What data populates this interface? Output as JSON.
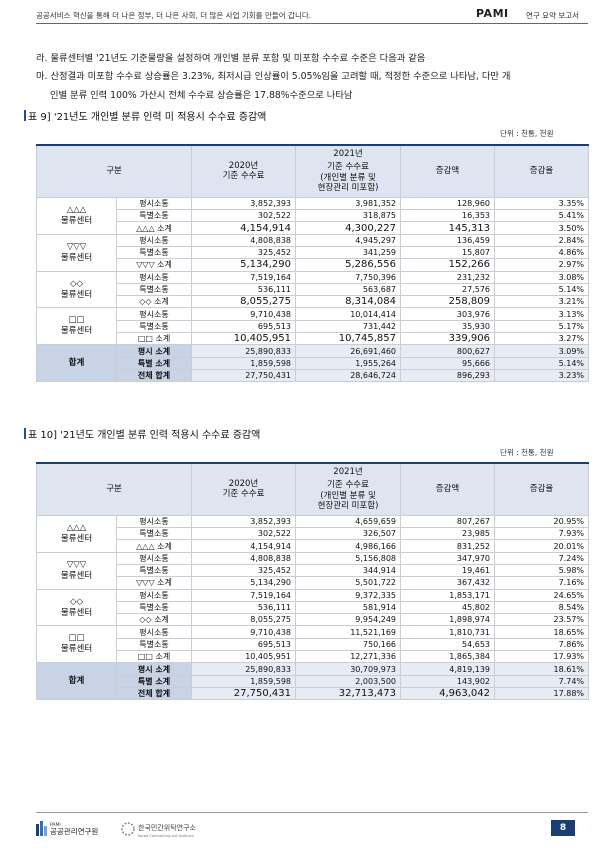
{
  "header": {
    "slogan": "공공서비스 혁신을 통해 더 나은 정부, 더 나은 사회, 더 많은 사업 기회를 만들어 갑니다.",
    "brand": "PAMI",
    "report": "연구 요약 보고서"
  },
  "paragraphs": [
    "라. 물류센터별 '21년도 기준물량을 설정하여 개인별 분류 포함 및 미포함 수수료 수준은 다음과 같음",
    "마. 산정결과 미포함 수수료 상승률은 3.23%, 최저시급 인상률이 5.05%임을 고려할 때, 적정한 수준으로 나타남, 다만 개",
    "인별 분류 인력 100% 가산시 전체 수수료 상승률은 17.88%수준으로 나타남"
  ],
  "tables": [
    {
      "title": "표 9] '21년도 개인별 분류 인력 미 적용시 수수료 증감액",
      "unit": "단위 : 천통, 천원",
      "headers": {
        "group": "구분",
        "col2020_a": "2020년",
        "col2020_b": "기준 수수료",
        "col2021_top": "2021년",
        "col2021_a": "기준 수수료",
        "col2021_b": "(개인별 분류 및",
        "col2021_c": "현장관리 미포함)",
        "diff": "증감액",
        "rate": "증감율"
      },
      "groups": [
        {
          "name_a": "△△△",
          "name_b": "물류센터",
          "rows": [
            {
              "label": "평시소통",
              "v2020": "3,852,393",
              "v2021": "3,981,352",
              "diff": "128,960",
              "rate": "3.35%",
              "big": false
            },
            {
              "label": "특별소통",
              "v2020": "302,522",
              "v2021": "318,875",
              "diff": "16,353",
              "rate": "5.41%",
              "big": false
            },
            {
              "label": "△△△ 소계",
              "v2020": "4,154,914",
              "v2021": "4,300,227",
              "diff": "145,313",
              "rate": "3.50%",
              "big": true
            }
          ]
        },
        {
          "name_a": "▽▽▽",
          "name_b": "물류센터",
          "rows": [
            {
              "label": "평시소통",
              "v2020": "4,808,838",
              "v2021": "4,945,297",
              "diff": "136,459",
              "rate": "2.84%",
              "big": false
            },
            {
              "label": "특별소통",
              "v2020": "325,452",
              "v2021": "341,259",
              "diff": "15,807",
              "rate": "4.86%",
              "big": false
            },
            {
              "label": "▽▽▽ 소계",
              "v2020": "5,134,290",
              "v2021": "5,286,556",
              "diff": "152,266",
              "rate": "2.97%",
              "big": true
            }
          ]
        },
        {
          "name_a": "◇◇",
          "name_b": "물류센터",
          "rows": [
            {
              "label": "평시소통",
              "v2020": "7,519,164",
              "v2021": "7,750,396",
              "diff": "231,232",
              "rate": "3.08%",
              "big": false
            },
            {
              "label": "특별소통",
              "v2020": "536,111",
              "v2021": "563,687",
              "diff": "27,576",
              "rate": "5.14%",
              "big": false
            },
            {
              "label": "◇◇ 소계",
              "v2020": "8,055,275",
              "v2021": "8,314,084",
              "diff": "258,809",
              "rate": "3.21%",
              "big": true
            }
          ]
        },
        {
          "name_a": "□□",
          "name_b": "물류센터",
          "rows": [
            {
              "label": "평시소통",
              "v2020": "9,710,438",
              "v2021": "10,014,414",
              "diff": "303,976",
              "rate": "3.13%",
              "big": false
            },
            {
              "label": "특별소통",
              "v2020": "695,513",
              "v2021": "731,442",
              "diff": "35,930",
              "rate": "5.17%",
              "big": false
            },
            {
              "label": "□□ 소계",
              "v2020": "10,405,951",
              "v2021": "10,745,857",
              "diff": "339,906",
              "rate": "3.27%",
              "big": true
            }
          ]
        },
        {
          "name_a": "합계",
          "name_b": "",
          "sum": true,
          "rows": [
            {
              "label": "평시 소계",
              "v2020": "25,890,833",
              "v2021": "26,691,460",
              "diff": "800,627",
              "rate": "3.09%",
              "big": false
            },
            {
              "label": "특별 소계",
              "v2020": "1,859,598",
              "v2021": "1,955,264",
              "diff": "95,666",
              "rate": "5.14%",
              "big": false
            },
            {
              "label": "전체 합계",
              "v2020": "27,750,431",
              "v2021": "28,646,724",
              "diff": "896,293",
              "rate": "3.23%",
              "big": false
            }
          ]
        }
      ]
    },
    {
      "title": "표 10] '21년도 개인별 분류 인력 적용시 수수료 증감액",
      "unit": "단위 : 천통, 천원",
      "headers": {
        "group": "구분",
        "col2020_a": "2020년",
        "col2020_b": "기준 수수료",
        "col2021_top": "2021년",
        "col2021_a": "기준 수수료",
        "col2021_b": "(개인별 분류 및",
        "col2021_c": "현장관리 미포함)",
        "diff": "증감액",
        "rate": "증감율"
      },
      "groups": [
        {
          "name_a": "△△△",
          "name_b": "물류센터",
          "rows": [
            {
              "label": "평시소통",
              "v2020": "3,852,393",
              "v2021": "4,659,659",
              "diff": "807,267",
              "rate": "20.95%",
              "big": false
            },
            {
              "label": "특별소통",
              "v2020": "302,522",
              "v2021": "326,507",
              "diff": "23,985",
              "rate": "7.93%",
              "big": false
            },
            {
              "label": "△△△ 소계",
              "v2020": "4,154,914",
              "v2021": "4,986,166",
              "diff": "831,252",
              "rate": "20.01%",
              "big": false
            }
          ]
        },
        {
          "name_a": "▽▽▽",
          "name_b": "물류센터",
          "rows": [
            {
              "label": "평시소통",
              "v2020": "4,808,838",
              "v2021": "5,156,808",
              "diff": "347,970",
              "rate": "7.24%",
              "big": false
            },
            {
              "label": "특별소통",
              "v2020": "325,452",
              "v2021": "344,914",
              "diff": "19,461",
              "rate": "5.98%",
              "big": false
            },
            {
              "label": "▽▽▽ 소계",
              "v2020": "5,134,290",
              "v2021": "5,501,722",
              "diff": "367,432",
              "rate": "7.16%",
              "big": false
            }
          ]
        },
        {
          "name_a": "◇◇",
          "name_b": "물류센터",
          "rows": [
            {
              "label": "평시소통",
              "v2020": "7,519,164",
              "v2021": "9,372,335",
              "diff": "1,853,171",
              "rate": "24.65%",
              "big": false
            },
            {
              "label": "특별소통",
              "v2020": "536,111",
              "v2021": "581,914",
              "diff": "45,802",
              "rate": "8.54%",
              "big": false
            },
            {
              "label": "◇◇ 소계",
              "v2020": "8,055,275",
              "v2021": "9,954,249",
              "diff": "1,898,974",
              "rate": "23.57%",
              "big": false
            }
          ]
        },
        {
          "name_a": "□□",
          "name_b": "물류센터",
          "rows": [
            {
              "label": "평시소통",
              "v2020": "9,710,438",
              "v2021": "11,521,169",
              "diff": "1,810,731",
              "rate": "18.65%",
              "big": false
            },
            {
              "label": "특별소통",
              "v2020": "695,513",
              "v2021": "750,166",
              "diff": "54,653",
              "rate": "7.86%",
              "big": false
            },
            {
              "label": "□□ 소계",
              "v2020": "10,405,951",
              "v2021": "12,271,336",
              "diff": "1,865,384",
              "rate": "17.93%",
              "big": false
            }
          ]
        },
        {
          "name_a": "합계",
          "name_b": "",
          "sum": true,
          "rows": [
            {
              "label": "평시 소계",
              "v2020": "25,890,833",
              "v2021": "30,709,973",
              "diff": "4,819,139",
              "rate": "18.61%",
              "big": false
            },
            {
              "label": "특별 소계",
              "v2020": "1,859,598",
              "v2021": "2,003,500",
              "diff": "143,902",
              "rate": "7.74%",
              "big": false
            },
            {
              "label": "전체 합계",
              "v2020": "27,750,431",
              "v2021": "32,713,473",
              "diff": "4,963,042",
              "rate": "17.88%",
              "big": true
            }
          ]
        }
      ]
    }
  ],
  "footer": {
    "org1": "공공관리연구원",
    "org1_tag": "PAMI",
    "org2": "한국민간위탁연구소",
    "org2_sub": "Korea Contracting-out Institute",
    "page": "8",
    "colors": {
      "navy": "#1a3e73",
      "header_fill": "#dfe5f0",
      "sum_fill": "#c9d3e6"
    }
  }
}
